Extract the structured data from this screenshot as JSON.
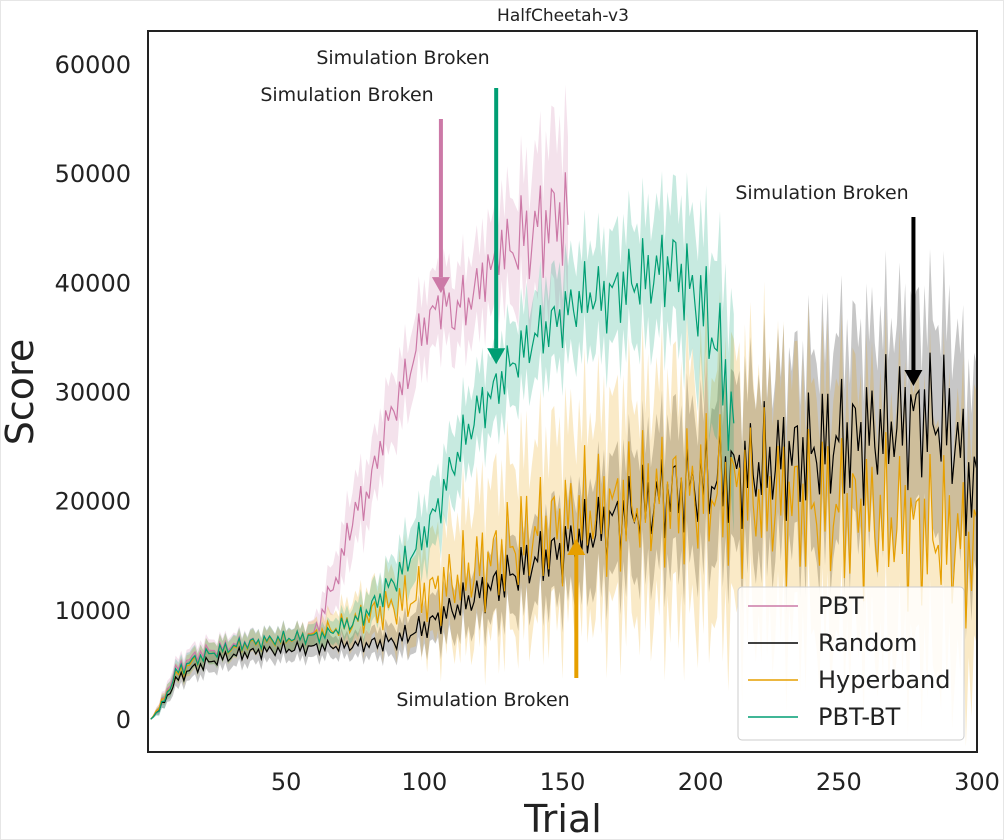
{
  "chart_data": {
    "type": "line",
    "title": "HalfCheetah-v3",
    "xlabel": "Trial",
    "ylabel": "Score",
    "xlim": [
      0,
      300
    ],
    "ylim": [
      -3000,
      63000
    ],
    "xticks": [
      "50",
      "100",
      "150",
      "200",
      "250",
      "300"
    ],
    "yticks": [
      "0",
      "10000",
      "20000",
      "30000",
      "40000",
      "50000",
      "60000"
    ],
    "grid": false,
    "legend_position": "bottom-right",
    "series": [
      {
        "name": "PBT",
        "color": "#cc79a7",
        "x": [
          1,
          5,
          10,
          15,
          20,
          25,
          30,
          35,
          40,
          45,
          50,
          55,
          60,
          62,
          65,
          68,
          70,
          72,
          75,
          78,
          80,
          83,
          85,
          88,
          90,
          93,
          95,
          98,
          100,
          103,
          105,
          108,
          110,
          113,
          115,
          118,
          120,
          123,
          125,
          128,
          130,
          133,
          135,
          138,
          140,
          143,
          145,
          148,
          150,
          152
        ],
        "y": [
          0,
          1500,
          4500,
          5500,
          6200,
          6400,
          6800,
          7000,
          7100,
          7300,
          7400,
          7500,
          7800,
          9000,
          11000,
          13000,
          14000,
          17000,
          19000,
          20000,
          21000,
          24000,
          26000,
          28000,
          29000,
          31000,
          32000,
          35000,
          36000,
          37000,
          38000,
          38500,
          36000,
          39000,
          37000,
          40000,
          39000,
          42000,
          41000,
          44000,
          43000,
          42500,
          45000,
          43000,
          46000,
          44000,
          47000,
          45000,
          47000,
          46000
        ],
        "band": [
          0,
          600,
          900,
          1000,
          1000,
          1000,
          1000,
          1000,
          1000,
          1000,
          1000,
          1000,
          1200,
          1500,
          2000,
          2500,
          2500,
          3000,
          3000,
          3000,
          3000,
          3000,
          3000,
          3200,
          3200,
          3200,
          3300,
          3400,
          3500,
          3500,
          3500,
          3600,
          3600,
          3700,
          3800,
          3900,
          4000,
          4200,
          4400,
          4600,
          4800,
          5000,
          5500,
          6000,
          6500,
          7000,
          7500,
          8000,
          8000,
          8000
        ],
        "annotation": {
          "text": "Simulation Broken",
          "x": 106,
          "y": 39000
        }
      },
      {
        "name": "Random",
        "color": "#000000",
        "x": [
          1,
          5,
          10,
          15,
          20,
          25,
          30,
          35,
          40,
          45,
          50,
          55,
          60,
          70,
          80,
          90,
          100,
          110,
          120,
          130,
          140,
          150,
          160,
          170,
          180,
          190,
          200,
          210,
          220,
          230,
          240,
          250,
          260,
          270,
          280,
          290,
          300
        ],
        "y": [
          0,
          1200,
          3500,
          4500,
          5000,
          5500,
          5800,
          6000,
          6200,
          6300,
          6400,
          6500,
          6600,
          6700,
          6900,
          7200,
          8500,
          10000,
          11500,
          13000,
          14500,
          15500,
          17000,
          18500,
          19500,
          21000,
          21500,
          22500,
          23000,
          24000,
          24500,
          25500,
          26000,
          27000,
          28000,
          27000,
          20000
        ],
        "band": [
          0,
          500,
          800,
          900,
          1000,
          1000,
          1000,
          1000,
          1000,
          1000,
          1000,
          1000,
          1000,
          1000,
          1200,
          1500,
          2000,
          2500,
          3000,
          3500,
          4000,
          4500,
          5000,
          5500,
          6000,
          6500,
          7000,
          7500,
          8000,
          8500,
          9000,
          9500,
          9500,
          9500,
          9500,
          9500,
          9500
        ],
        "annotation": {
          "text": "Simulation Broken",
          "x": 277,
          "y": 30500
        }
      },
      {
        "name": "Hyperband",
        "color": "#e69f00",
        "x": [
          1,
          5,
          10,
          15,
          20,
          25,
          30,
          35,
          40,
          45,
          50,
          55,
          60,
          70,
          80,
          90,
          100,
          110,
          120,
          130,
          140,
          150,
          160,
          170,
          180,
          190,
          200,
          210,
          220,
          230,
          240,
          250,
          260,
          270,
          280,
          290,
          300
        ],
        "y": [
          0,
          1500,
          4000,
          5000,
          5800,
          6200,
          6500,
          6800,
          7000,
          7200,
          7300,
          7500,
          7700,
          8500,
          9500,
          10500,
          11500,
          12500,
          14000,
          15500,
          17000,
          18000,
          19000,
          19500,
          20000,
          20500,
          21000,
          21000,
          20500,
          20000,
          19500,
          19000,
          18500,
          18000,
          17500,
          16500,
          15000
        ],
        "band": [
          0,
          500,
          800,
          1000,
          1000,
          1000,
          1000,
          1000,
          1000,
          1000,
          1000,
          1000,
          1200,
          1800,
          2500,
          3500,
          4500,
          5500,
          6500,
          7500,
          8000,
          8500,
          9000,
          9500,
          10000,
          10500,
          11000,
          11500,
          11500,
          11500,
          11500,
          11500,
          11500,
          11500,
          11500,
          11500,
          11500
        ],
        "annotation": {
          "text": "Simulation Broken",
          "x": 155,
          "y": 16500
        }
      },
      {
        "name": "PBT-BT",
        "color": "#009e73",
        "x": [
          1,
          5,
          10,
          15,
          20,
          25,
          30,
          35,
          40,
          45,
          50,
          55,
          60,
          65,
          70,
          75,
          80,
          85,
          90,
          95,
          100,
          105,
          110,
          115,
          120,
          125,
          130,
          135,
          140,
          145,
          150,
          155,
          160,
          165,
          170,
          175,
          180,
          185,
          190,
          195,
          200,
          205,
          210,
          212
        ],
        "y": [
          0,
          1200,
          4200,
          5200,
          5800,
          6200,
          6600,
          6900,
          7100,
          7300,
          7400,
          7500,
          7600,
          7800,
          8500,
          9000,
          10000,
          11500,
          13000,
          15000,
          17000,
          19500,
          23000,
          26000,
          28500,
          30000,
          32000,
          33500,
          35000,
          36000,
          37000,
          38000,
          39000,
          38500,
          39500,
          40000,
          40500,
          41000,
          42000,
          40000,
          38000,
          35000,
          30000,
          25000
        ],
        "band": [
          0,
          600,
          900,
          1000,
          1000,
          1000,
          1000,
          1000,
          1000,
          1000,
          1000,
          1000,
          1000,
          1000,
          1200,
          1500,
          1800,
          2000,
          2500,
          2800,
          3000,
          3200,
          3400,
          3500,
          3600,
          3700,
          3800,
          3900,
          4000,
          4200,
          4400,
          4600,
          4800,
          5000,
          5200,
          5400,
          5600,
          5800,
          6000,
          6500,
          7000,
          8000,
          9000,
          10000
        ],
        "annotation": {
          "text": "Simulation Broken",
          "x": 126,
          "y": 32500
        }
      }
    ]
  }
}
